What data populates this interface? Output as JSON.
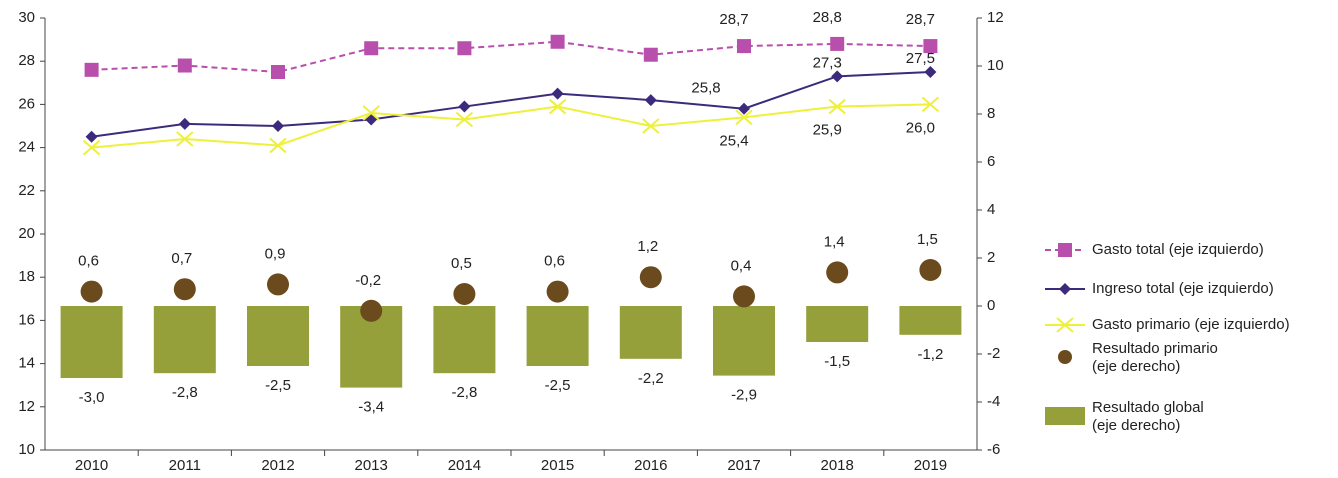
{
  "chart_data": {
    "type": "combo",
    "categories": [
      "2010",
      "2011",
      "2012",
      "2013",
      "2014",
      "2015",
      "2016",
      "2017",
      "2018",
      "2019"
    ],
    "ylim": [
      10,
      30
    ],
    "yticks": [
      10,
      12,
      14,
      16,
      18,
      20,
      22,
      24,
      26,
      28,
      30
    ],
    "y2lim": [
      -6,
      12
    ],
    "y2ticks": [
      -6,
      -4,
      -2,
      0,
      2,
      4,
      6,
      8,
      10,
      12
    ],
    "series": [
      {
        "name": "Gasto total (eje izquierdo)",
        "type": "line",
        "marker": "square",
        "linestyle": "dashed",
        "color": "#b94fac",
        "values": [
          27.6,
          27.8,
          27.5,
          28.6,
          28.6,
          28.9,
          28.3,
          28.7,
          28.8,
          28.7
        ],
        "value_labels": [
          null,
          null,
          null,
          null,
          null,
          null,
          null,
          "28,7",
          "28,8",
          "28,7"
        ]
      },
      {
        "name": "Ingreso total (eje izquierdo)",
        "type": "line",
        "marker": "diamond",
        "linestyle": "solid",
        "color": "#3c2a7c",
        "values": [
          24.5,
          25.1,
          25.0,
          25.3,
          25.9,
          26.5,
          26.2,
          25.8,
          27.3,
          27.5
        ],
        "value_labels": [
          null,
          null,
          null,
          null,
          null,
          null,
          null,
          "25,8",
          "27,3",
          "27,5"
        ]
      },
      {
        "name": "Gasto primario (eje izquierdo)",
        "type": "line",
        "marker": "x",
        "linestyle": "solid",
        "color": "#eef03a",
        "values": [
          24.0,
          24.4,
          24.1,
          25.6,
          25.3,
          25.9,
          25.0,
          25.4,
          25.9,
          26.0
        ],
        "value_labels": [
          null,
          null,
          null,
          null,
          null,
          null,
          null,
          "25,4",
          "25,9",
          "26,0"
        ]
      },
      {
        "name": "Resultado primario (eje derecho)",
        "type": "dot",
        "axis": "y2",
        "color": "#6b4a1e",
        "values": [
          0.6,
          0.7,
          0.9,
          -0.2,
          0.5,
          0.6,
          1.2,
          0.4,
          1.4,
          1.5
        ],
        "value_labels": [
          "0,6",
          "0,7",
          "0,9",
          "-0,2",
          "0,5",
          "0,6",
          "1,2",
          "0,4",
          "1,4",
          "1,5"
        ]
      },
      {
        "name": "Resultado global (eje derecho)",
        "type": "bar",
        "axis": "y2",
        "color": "#95a03a",
        "values": [
          -3.0,
          -2.8,
          -2.5,
          -3.4,
          -2.8,
          -2.5,
          -2.2,
          -2.9,
          -1.5,
          -1.2
        ],
        "value_labels": [
          "-3,0",
          "-2,8",
          "-2,5",
          "-3,4",
          "-2,8",
          "-2,5",
          "-2,2",
          "-2,9",
          "-1,5",
          "-1,2"
        ]
      }
    ]
  }
}
